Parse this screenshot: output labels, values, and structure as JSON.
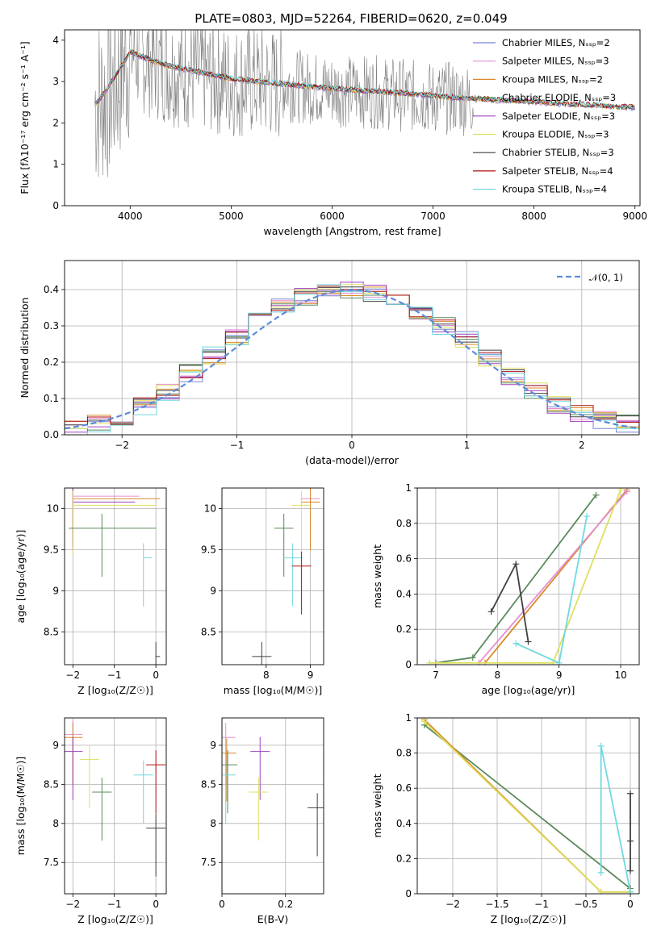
{
  "page": {
    "title": "PLATE=0803, MJD=52264, FIBERID=0620, z=0.049"
  },
  "models": [
    {
      "label": "Chabrier MILES, N$_{SSP}$=2",
      "color": "#7b84d6"
    },
    {
      "label": "Salpeter MILES, N$_{SSP}$=3",
      "color": "#e58fd0"
    },
    {
      "label": "Kroupa MILES, N$_{SSP}$=2",
      "color": "#d88a2a"
    },
    {
      "label": "Chabrier ELODIE, N$_{SSP}$=3",
      "color": "#5a8a5a"
    },
    {
      "label": "Salpeter ELODIE, N$_{SSP}$=3",
      "color": "#a040c0"
    },
    {
      "label": "Kroupa ELODIE, N$_{SSP}$=3",
      "color": "#dde060"
    },
    {
      "label": "Chabrier STELIB, N$_{SSP}$=3",
      "color": "#404040"
    },
    {
      "label": "Salpeter STELIB, N$_{SSP}$=4",
      "color": "#b01010"
    },
    {
      "label": "Kroupa STELIB, N$_{SSP}$=4",
      "color": "#70d8e0"
    }
  ],
  "chart_data": [
    {
      "id": "spectrum",
      "type": "line",
      "xlabel": "wavelength [Angstrom, rest frame]",
      "ylabel": "Flux [f$_\\lambda$10$^{-17}$ erg cm$^{-2}$ s$^{-1}$ A$^{-1}$]",
      "xlim": [
        3350,
        9050
      ],
      "ylim": [
        0,
        4.25
      ],
      "xticks": [
        4000,
        5000,
        6000,
        7000,
        8000,
        9000
      ],
      "yticks": [
        0,
        1,
        2,
        3,
        4
      ],
      "legend": "right",
      "data_color": "#808080",
      "observed": {
        "x": [
          3650,
          3800,
          4000,
          4200,
          4400,
          4600,
          4800,
          5000,
          5200,
          5400,
          5600,
          5800,
          6000,
          6200,
          6400,
          6600,
          6800,
          7000,
          7200,
          7400,
          7600,
          7800,
          8000,
          8200,
          8400,
          8600,
          8800,
          9000
        ],
        "y": [
          2.5,
          2.7,
          3.7,
          3.5,
          3.3,
          3.2,
          3.1,
          3.0,
          3.0,
          2.95,
          2.9,
          2.85,
          2.8,
          2.75,
          2.75,
          2.7,
          2.65,
          2.6,
          2.6,
          2.55,
          2.5,
          2.5,
          2.45,
          2.45,
          2.4,
          2.4,
          2.35,
          2.3
        ]
      },
      "model": {
        "x": [
          3650,
          3800,
          4000,
          4200,
          4400,
          4600,
          4800,
          5000,
          5200,
          5400,
          5600,
          5800,
          6000,
          6200,
          6400,
          6600,
          6800,
          7000,
          7200,
          7400,
          7600,
          7800,
          8000,
          8200,
          8400,
          8600,
          8800,
          9000
        ],
        "y": [
          2.4,
          2.9,
          3.7,
          3.5,
          3.35,
          3.25,
          3.15,
          3.05,
          3.0,
          2.95,
          2.9,
          2.85,
          2.82,
          2.78,
          2.75,
          2.72,
          2.68,
          2.64,
          2.6,
          2.57,
          2.54,
          2.52,
          2.49,
          2.46,
          2.43,
          2.41,
          2.38,
          2.35
        ]
      }
    },
    {
      "id": "residuals",
      "type": "line",
      "xlabel": "(data-model)/error",
      "ylabel": "Normed distribution",
      "xlim": [
        -2.5,
        2.5
      ],
      "ylim": [
        0,
        0.48
      ],
      "xticks": [
        -2,
        -1,
        0,
        1,
        2
      ],
      "yticks": [
        0.0,
        0.1,
        0.2,
        0.3,
        0.4
      ],
      "grid": true,
      "legend": "top-right",
      "reference_label": "$\\mathcal{N}(0,1)$",
      "reference_color": "#5b8bd8",
      "bin_edges": [
        -2.5,
        -2.3,
        -2.1,
        -1.9,
        -1.7,
        -1.5,
        -1.3,
        -1.1,
        -0.9,
        -0.7,
        -0.5,
        -0.3,
        -0.1,
        0.1,
        0.3,
        0.5,
        0.7,
        0.9,
        1.1,
        1.3,
        1.5,
        1.7,
        1.9,
        2.1,
        2.3,
        2.5
      ],
      "hist_values": [
        0.02,
        0.03,
        0.05,
        0.08,
        0.12,
        0.17,
        0.22,
        0.27,
        0.31,
        0.35,
        0.38,
        0.4,
        0.4,
        0.39,
        0.37,
        0.34,
        0.3,
        0.26,
        0.21,
        0.16,
        0.12,
        0.08,
        0.06,
        0.04,
        0.03
      ]
    },
    {
      "id": "age-vs-Z",
      "type": "scatter",
      "xlabel": "Z [log$_{10}$($Z/Z_\\odot$)]",
      "ylabel": "age  [log$_{10}$($age/yr$)]",
      "xlim": [
        -2.2,
        0.25
      ],
      "ylim": [
        8.1,
        10.25
      ],
      "xticks": [
        -2,
        -1,
        0
      ],
      "yticks": [
        8.5,
        9.0,
        9.5,
        10.0
      ],
      "grid": true,
      "points": [
        {
          "x": -2.0,
          "y": 10.15,
          "xerr": [
            0.0,
            1.6
          ],
          "color": "#e58fd0"
        },
        {
          "x": -2.0,
          "y": 10.12,
          "xerr": [
            0.0,
            2.1
          ],
          "color": "#d88a2a"
        },
        {
          "x": -2.0,
          "y": 10.08,
          "xerr": [
            0.0,
            1.5
          ],
          "color": "#a040c0"
        },
        {
          "x": -2.0,
          "y": 10.04,
          "xerr": [
            0.0,
            2.0
          ],
          "color": "#dde060"
        },
        {
          "x": -1.3,
          "y": 9.76,
          "xerr": [
            0.8,
            1.3
          ],
          "color": "#5a8a5a"
        },
        {
          "x": -0.3,
          "y": 9.4,
          "xerr": [
            0.0,
            0.2
          ],
          "color": "#70d8e0"
        },
        {
          "x": 0.0,
          "y": 8.2,
          "xerr": [
            0.0,
            0.1
          ],
          "color": "#404040"
        }
      ]
    },
    {
      "id": "age-vs-mass",
      "type": "scatter",
      "xlabel": "mass [log$_{10}$($M/M_\\odot$)]",
      "ylabel": "",
      "xlim": [
        7.0,
        9.3
      ],
      "ylim": [
        8.1,
        10.25
      ],
      "xticks": [
        8,
        9
      ],
      "yticks": [
        8.5,
        9.0,
        9.5,
        10.0
      ],
      "grid": true,
      "points": [
        {
          "x": 9.0,
          "y": 10.12,
          "color": "#e58fd0"
        },
        {
          "x": 9.0,
          "y": 10.08,
          "color": "#d88a2a"
        },
        {
          "x": 8.8,
          "y": 10.04,
          "color": "#dde060"
        },
        {
          "x": 8.4,
          "y": 9.76,
          "color": "#5a8a5a"
        },
        {
          "x": 8.6,
          "y": 9.4,
          "color": "#70d8e0"
        },
        {
          "x": 8.8,
          "y": 9.3,
          "color": "#b01010"
        },
        {
          "x": 7.9,
          "y": 8.2,
          "color": "#404040"
        }
      ]
    },
    {
      "id": "massweight-vs-age",
      "type": "line",
      "xlabel": "age  [log$_{10}$($age/yr$)]",
      "ylabel": "mass weight",
      "xlim": [
        6.7,
        10.3
      ],
      "ylim": [
        0,
        1.0
      ],
      "xticks": [
        7,
        8,
        9,
        10
      ],
      "yticks": [
        0.0,
        0.2,
        0.4,
        0.6,
        0.8,
        1.0
      ],
      "grid": true,
      "series": [
        {
          "color": "#5a8a5a",
          "x": [
            7.0,
            7.6,
            9.6
          ],
          "y": [
            0.01,
            0.04,
            0.96
          ]
        },
        {
          "color": "#d88a2a",
          "x": [
            7.8,
            10.1
          ],
          "y": [
            0.01,
            0.99
          ]
        },
        {
          "color": "#e58fd0",
          "x": [
            7.7,
            10.1
          ],
          "y": [
            0.01,
            0.98
          ]
        },
        {
          "color": "#dde060",
          "x": [
            6.9,
            8.9,
            10.0
          ],
          "y": [
            0.01,
            0.01,
            0.99
          ]
        },
        {
          "color": "#70d8e0",
          "x": [
            8.3,
            9.0,
            9.45
          ],
          "y": [
            0.12,
            0.01,
            0.84
          ]
        },
        {
          "color": "#404040",
          "x": [
            7.9,
            8.3,
            8.5
          ],
          "y": [
            0.3,
            0.57,
            0.13
          ]
        }
      ]
    },
    {
      "id": "mass-vs-Z",
      "type": "scatter",
      "xlabel": "Z [log$_{10}$($Z/Z_\\odot$)]",
      "ylabel": "mass [log$_{10}$($M/M_\\odot$)]",
      "xlim": [
        -2.2,
        0.25
      ],
      "ylim": [
        7.1,
        9.35
      ],
      "xticks": [
        -2,
        -1,
        0
      ],
      "yticks": [
        7.5,
        8.0,
        8.5,
        9.0
      ],
      "grid": true,
      "points": [
        {
          "x": -2.0,
          "y": 9.14,
          "color": "#e58fd0"
        },
        {
          "x": -2.0,
          "y": 9.1,
          "color": "#d88a2a"
        },
        {
          "x": -2.0,
          "y": 8.92,
          "color": "#a040c0"
        },
        {
          "x": -1.6,
          "y": 8.82,
          "color": "#dde060"
        },
        {
          "x": -1.3,
          "y": 8.4,
          "color": "#5a8a5a"
        },
        {
          "x": 0.0,
          "y": 8.75,
          "color": "#b01010"
        },
        {
          "x": -0.3,
          "y": 8.62,
          "color": "#70d8e0"
        },
        {
          "x": 0.0,
          "y": 7.94,
          "color": "#404040"
        }
      ]
    },
    {
      "id": "mass-vs-ebv",
      "type": "scatter",
      "xlabel": "E(B-V)",
      "ylabel": "",
      "xlim": [
        0.0,
        0.32
      ],
      "ylim": [
        7.1,
        9.35
      ],
      "xticks": [
        0.0,
        0.2
      ],
      "yticks": [
        7.5,
        8.0,
        8.5,
        9.0
      ],
      "grid": true,
      "points": [
        {
          "x": 0.012,
          "y": 9.1,
          "color": "#e58fd0"
        },
        {
          "x": 0.015,
          "y": 8.9,
          "color": "#d88a2a"
        },
        {
          "x": 0.018,
          "y": 8.75,
          "color": "#5a8a5a"
        },
        {
          "x": 0.12,
          "y": 8.92,
          "color": "#a040c0"
        },
        {
          "x": 0.115,
          "y": 8.4,
          "color": "#dde060"
        },
        {
          "x": 0.012,
          "y": 8.62,
          "color": "#70d8e0"
        },
        {
          "x": 0.3,
          "y": 8.2,
          "color": "#404040"
        }
      ]
    },
    {
      "id": "massweight-vs-Z",
      "type": "line",
      "xlabel": "Z [log$_{10}$($Z/Z_\\odot$)]",
      "ylabel": "mass weight",
      "xlim": [
        -2.4,
        0.1
      ],
      "ylim": [
        0,
        1.0
      ],
      "xticks": [
        -2.0,
        -1.5,
        -1.0,
        -0.5,
        0.0
      ],
      "yticks": [
        0.0,
        0.2,
        0.4,
        0.6,
        0.8,
        1.0
      ],
      "grid": true,
      "series": [
        {
          "color": "#5a8a5a",
          "x": [
            -2.32,
            0.0
          ],
          "y": [
            0.96,
            0.03
          ]
        },
        {
          "color": "#d88a2a",
          "x": [
            -2.32,
            -0.33,
            0.0
          ],
          "y": [
            0.99,
            0.01,
            0.01
          ]
        },
        {
          "color": "#dde060",
          "x": [
            -2.32,
            -0.33,
            0.0
          ],
          "y": [
            0.98,
            0.01,
            0.01
          ]
        },
        {
          "color": "#70d8e0",
          "x": [
            -0.33,
            -0.33,
            0.0
          ],
          "y": [
            0.12,
            0.84,
            0.01
          ]
        },
        {
          "color": "#404040",
          "x": [
            0.0,
            0.0,
            0.0
          ],
          "y": [
            0.13,
            0.3,
            0.57
          ]
        }
      ]
    }
  ]
}
